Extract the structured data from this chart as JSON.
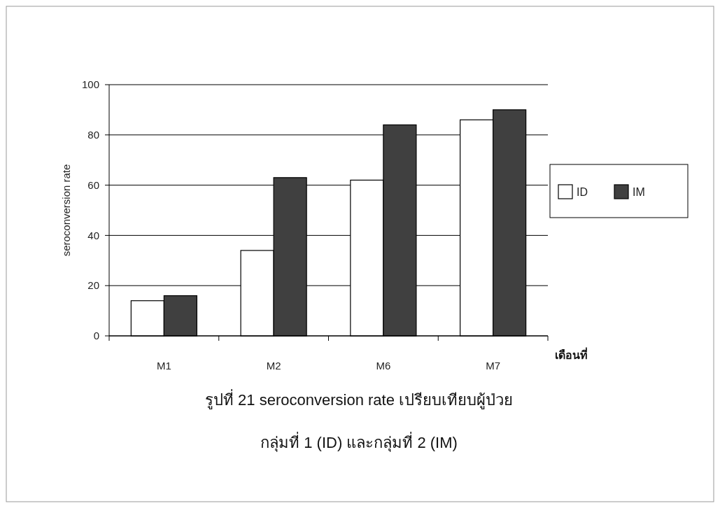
{
  "chart_data": {
    "type": "bar",
    "title": "รูปที่  21 seroconversion rate เปรียบเทียบผู้ป่วย",
    "subtitle": "กลุ่มที่ 1 (ID) และกลุ่มที่ 2 (IM)",
    "xlabel": "เดือนที่",
    "ylabel": "seroconversion rate",
    "categories": [
      "M1",
      "M2",
      "M6",
      "M7"
    ],
    "series": [
      {
        "name": "ID",
        "color": "#ffffff",
        "values": [
          14,
          34,
          62,
          86
        ]
      },
      {
        "name": "IM",
        "color": "#404040",
        "values": [
          16,
          63,
          84,
          90
        ]
      }
    ],
    "ylim": [
      0,
      100
    ],
    "yticks": [
      0,
      20,
      40,
      60,
      80,
      100
    ],
    "grid": "y",
    "legend": "right"
  }
}
